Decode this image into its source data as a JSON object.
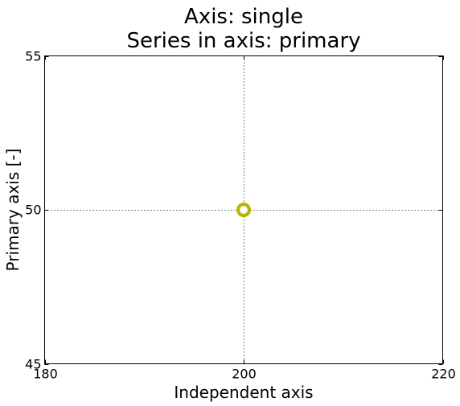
{
  "chart_data": {
    "type": "scatter",
    "title_lines": [
      "Axis: single",
      "Series in axis: primary"
    ],
    "xlabel": "Independent axis",
    "ylabel": "Primary axis [-]",
    "xlim": [
      180,
      220
    ],
    "ylim": [
      45,
      55
    ],
    "x_ticks": [
      "180",
      "200",
      "220"
    ],
    "y_ticks": [
      "45",
      "50",
      "55"
    ],
    "x_tick_values": [
      180,
      200,
      220
    ],
    "y_tick_values": [
      45,
      50,
      55
    ],
    "grid": true,
    "grid_style": "dotted",
    "series": [
      {
        "x": [
          200
        ],
        "y": [
          50
        ],
        "marker": "circle",
        "color": "#b5b500"
      }
    ]
  }
}
